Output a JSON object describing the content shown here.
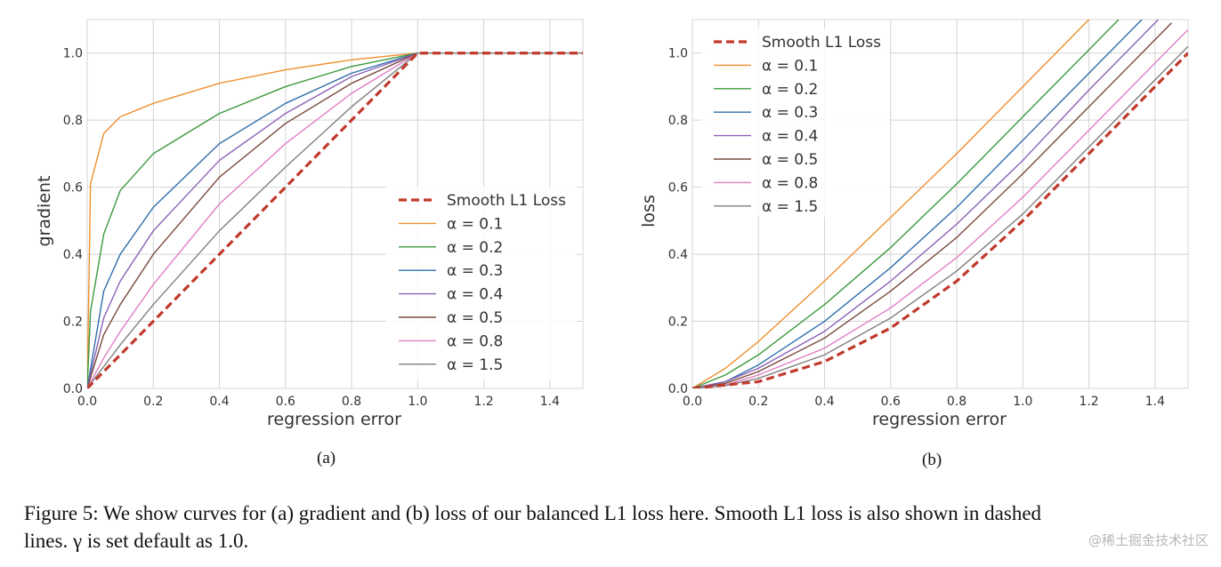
{
  "chart_data": [
    {
      "type": "line",
      "xlabel": "regression error",
      "ylabel": "gradient",
      "xlim": [
        0,
        1.5
      ],
      "ylim": [
        0,
        1.1
      ],
      "xticks": [
        "0.0",
        "0.2",
        "0.4",
        "0.6",
        "0.8",
        "1.0",
        "1.2",
        "1.4"
      ],
      "yticks": [
        "0.0",
        "0.2",
        "0.4",
        "0.6",
        "0.8",
        "1.0"
      ],
      "grid": true,
      "legend_position": "lower-right",
      "series": [
        {
          "name": "Smooth L1 Loss",
          "color": "#c0392b",
          "dashed": true,
          "x": [
            0,
            0.2,
            0.4,
            0.6,
            0.8,
            1.0,
            1.2,
            1.4,
            1.5
          ],
          "y": [
            0,
            0.2,
            0.4,
            0.6,
            0.8,
            1.0,
            1.0,
            1.0,
            1.0
          ]
        },
        {
          "name": "α = 0.1",
          "color": "#ef8f2f",
          "dashed": false,
          "x": [
            0,
            0.01,
            0.05,
            0.1,
            0.2,
            0.4,
            0.6,
            0.8,
            1.0,
            1.2,
            1.5
          ],
          "y": [
            0,
            0.61,
            0.76,
            0.81,
            0.85,
            0.91,
            0.95,
            0.98,
            1.0,
            1.0,
            1.0
          ]
        },
        {
          "name": "α = 0.2",
          "color": "#3d9a3d",
          "dashed": false,
          "x": [
            0,
            0.01,
            0.05,
            0.1,
            0.2,
            0.4,
            0.6,
            0.8,
            1.0,
            1.2,
            1.5
          ],
          "y": [
            0,
            0.23,
            0.46,
            0.59,
            0.7,
            0.82,
            0.9,
            0.96,
            1.0,
            1.0,
            1.0
          ]
        },
        {
          "name": "α = 0.3",
          "color": "#2f6fab",
          "dashed": false,
          "x": [
            0,
            0.05,
            0.1,
            0.2,
            0.4,
            0.6,
            0.8,
            1.0,
            1.2,
            1.5
          ],
          "y": [
            0,
            0.29,
            0.4,
            0.54,
            0.73,
            0.85,
            0.94,
            1.0,
            1.0,
            1.0
          ]
        },
        {
          "name": "α = 0.4",
          "color": "#8b62b8",
          "dashed": false,
          "x": [
            0,
            0.05,
            0.1,
            0.2,
            0.4,
            0.6,
            0.8,
            1.0,
            1.2,
            1.5
          ],
          "y": [
            0,
            0.21,
            0.32,
            0.47,
            0.68,
            0.82,
            0.93,
            1.0,
            1.0,
            1.0
          ]
        },
        {
          "name": "α = 0.5",
          "color": "#7a4a3e",
          "dashed": false,
          "x": [
            0,
            0.05,
            0.1,
            0.2,
            0.4,
            0.6,
            0.8,
            1.0,
            1.2,
            1.5
          ],
          "y": [
            0,
            0.16,
            0.25,
            0.4,
            0.63,
            0.79,
            0.91,
            1.0,
            1.0,
            1.0
          ]
        },
        {
          "name": "α = 0.8",
          "color": "#e07fc4",
          "dashed": false,
          "x": [
            0,
            0.05,
            0.1,
            0.2,
            0.4,
            0.6,
            0.8,
            1.0,
            1.2,
            1.5
          ],
          "y": [
            0,
            0.09,
            0.17,
            0.31,
            0.55,
            0.73,
            0.88,
            1.0,
            1.0,
            1.0
          ]
        },
        {
          "name": "α = 1.5",
          "color": "#7f7f7f",
          "dashed": false,
          "x": [
            0,
            0.05,
            0.1,
            0.2,
            0.4,
            0.6,
            0.8,
            1.0,
            1.2,
            1.5
          ],
          "y": [
            0,
            0.065,
            0.13,
            0.25,
            0.47,
            0.66,
            0.84,
            1.0,
            1.0,
            1.0
          ]
        }
      ]
    },
    {
      "type": "line",
      "xlabel": "regression error",
      "ylabel": "loss",
      "xlim": [
        0,
        1.5
      ],
      "ylim": [
        0,
        1.1
      ],
      "xticks": [
        "0.0",
        "0.2",
        "0.4",
        "0.6",
        "0.8",
        "1.0",
        "1.2",
        "1.4"
      ],
      "yticks": [
        "0.0",
        "0.2",
        "0.4",
        "0.6",
        "0.8",
        "1.0"
      ],
      "grid": true,
      "legend_position": "upper-left",
      "series": [
        {
          "name": "Smooth L1 Loss",
          "color": "#c0392b",
          "dashed": true,
          "x": [
            0,
            0.2,
            0.4,
            0.6,
            0.8,
            1.0,
            1.2,
            1.4,
            1.5
          ],
          "y": [
            0,
            0.02,
            0.08,
            0.18,
            0.32,
            0.5,
            0.7,
            0.9,
            1.0
          ]
        },
        {
          "name": "α = 0.1",
          "color": "#ef8f2f",
          "dashed": false,
          "x": [
            0,
            0.1,
            0.2,
            0.4,
            0.6,
            0.8,
            1.0,
            1.2
          ],
          "y": [
            0,
            0.06,
            0.14,
            0.32,
            0.51,
            0.7,
            0.9,
            1.1
          ]
        },
        {
          "name": "α = 0.2",
          "color": "#3d9a3d",
          "dashed": false,
          "x": [
            0,
            0.1,
            0.2,
            0.4,
            0.6,
            0.8,
            1.0,
            1.2,
            1.29
          ],
          "y": [
            0,
            0.04,
            0.1,
            0.25,
            0.42,
            0.61,
            0.81,
            1.01,
            1.1
          ]
        },
        {
          "name": "α = 0.3",
          "color": "#2f6fab",
          "dashed": false,
          "x": [
            0,
            0.1,
            0.2,
            0.4,
            0.6,
            0.8,
            1.0,
            1.2,
            1.36
          ],
          "y": [
            0,
            0.02,
            0.07,
            0.2,
            0.36,
            0.54,
            0.74,
            0.94,
            1.1
          ]
        },
        {
          "name": "α = 0.4",
          "color": "#8b62b8",
          "dashed": false,
          "x": [
            0,
            0.1,
            0.2,
            0.4,
            0.6,
            0.8,
            1.0,
            1.2,
            1.41
          ],
          "y": [
            0,
            0.02,
            0.06,
            0.17,
            0.32,
            0.49,
            0.68,
            0.89,
            1.1
          ]
        },
        {
          "name": "α = 0.5",
          "color": "#7a4a3e",
          "dashed": false,
          "x": [
            0,
            0.1,
            0.2,
            0.4,
            0.6,
            0.8,
            1.0,
            1.2,
            1.4,
            1.45
          ],
          "y": [
            0,
            0.015,
            0.05,
            0.15,
            0.29,
            0.45,
            0.64,
            0.84,
            1.04,
            1.09
          ]
        },
        {
          "name": "α = 0.8",
          "color": "#e07fc4",
          "dashed": false,
          "x": [
            0,
            0.1,
            0.2,
            0.4,
            0.6,
            0.8,
            1.0,
            1.2,
            1.4,
            1.5
          ],
          "y": [
            0,
            0.01,
            0.04,
            0.12,
            0.24,
            0.39,
            0.57,
            0.77,
            0.97,
            1.07
          ]
        },
        {
          "name": "α = 1.5",
          "color": "#7f7f7f",
          "dashed": false,
          "x": [
            0,
            0.1,
            0.2,
            0.4,
            0.6,
            0.8,
            1.0,
            1.2,
            1.4,
            1.5
          ],
          "y": [
            0,
            0.008,
            0.03,
            0.1,
            0.21,
            0.35,
            0.52,
            0.72,
            0.92,
            1.02
          ]
        }
      ]
    }
  ],
  "sublabels": [
    "(a)",
    "(b)"
  ],
  "caption": {
    "line1": "Figure 5: We show curves for (a) gradient and (b) loss of our balanced L1 loss here. Smooth L1 loss is also shown in dashed",
    "line2": "lines. γ is set default as 1.0."
  },
  "watermark": "@稀土掘金技术社区"
}
